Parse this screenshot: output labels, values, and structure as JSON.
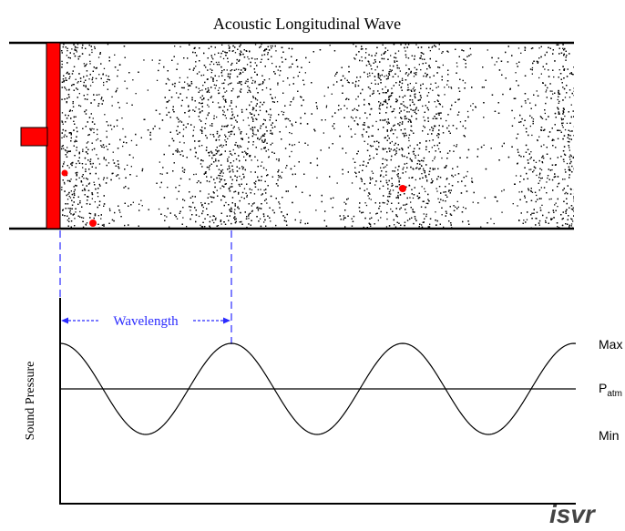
{
  "title": "Acoustic Longitudinal Wave",
  "wavelength_label": "Wavelength",
  "y_axis_label": "Sound Pressure",
  "levels": {
    "max": "Max",
    "p_prefix": "P",
    "p_subscript": "atm",
    "min": "Min"
  },
  "logo_text": "isvr",
  "colors": {
    "piston": "#ff0000",
    "particles": "#000000",
    "wavelength_marker": "#2a2aff",
    "logo": "#444444"
  }
}
